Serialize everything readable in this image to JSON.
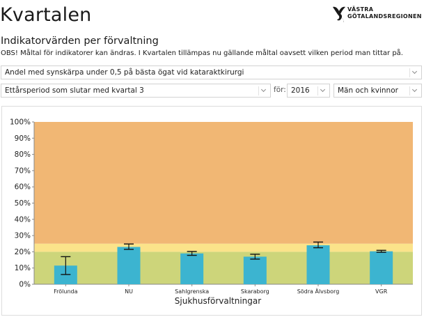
{
  "header": {
    "app_title": "Kvartalen",
    "logo_line1": "VÄSTRA",
    "logo_line2": "GÖTALANDSREGIONEN"
  },
  "page": {
    "subtitle": "Indikatorvärden per förvaltning",
    "notice": "OBS! Måltal för indikatorer kan ändras. I Kvartalen tillämpas nu gällande måltal oavsett vilken period man tittar på."
  },
  "filters": {
    "indicator": "Andel med synskärpa under 0,5 på bästa ögat vid kataraktkirurgi",
    "period": "Ettårsperiod som slutar med kvartal 3",
    "for_label": "för:",
    "year": "2016",
    "gender": "Män och kvinnor"
  },
  "colors": {
    "bar": "#3cb4d0",
    "zone_green": "#cdd57a",
    "zone_yellow": "#fbe38a",
    "zone_orange": "#f1b774",
    "error_bar": "#111111"
  },
  "chart_data": {
    "type": "bar",
    "title": "",
    "xlabel": "Sjukhusförvaltningar",
    "ylabel": "",
    "ylim": [
      0,
      100
    ],
    "yticks": [
      "0%",
      "10%",
      "20%",
      "30%",
      "40%",
      "50%",
      "60%",
      "70%",
      "80%",
      "90%",
      "100%"
    ],
    "categories": [
      "Frölunda",
      "NU",
      "Sahlgrenska",
      "Skaraborg",
      "Södra Älvsborg",
      "VGR"
    ],
    "values": [
      11.5,
      23,
      19,
      17,
      24,
      20.3
    ],
    "error_low": [
      6,
      21.5,
      17.8,
      15.5,
      22.5,
      19.7
    ],
    "error_high": [
      17,
      24.8,
      20.2,
      18.5,
      26,
      20.9
    ],
    "zones": [
      {
        "from": 0,
        "to": 20,
        "color": "#cdd57a"
      },
      {
        "from": 20,
        "to": 25,
        "color": "#fbe38a"
      },
      {
        "from": 25,
        "to": 100,
        "color": "#f1b774"
      }
    ],
    "grid": false,
    "legend": "none"
  }
}
